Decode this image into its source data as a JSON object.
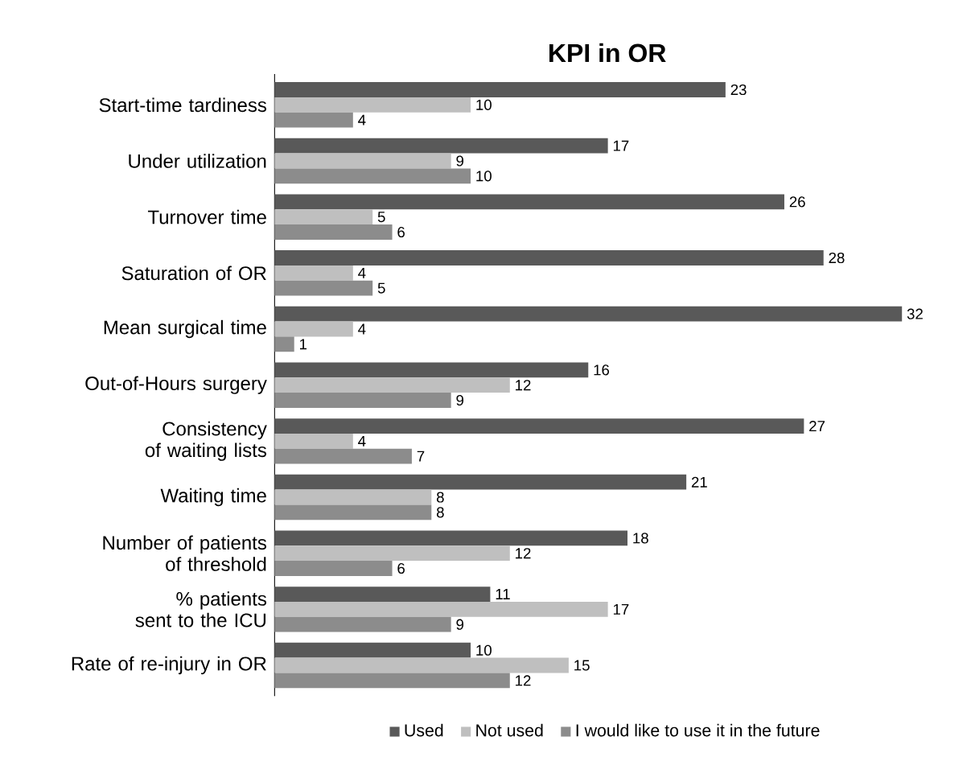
{
  "chart_data": {
    "type": "bar",
    "orientation": "horizontal",
    "title": "KPI in OR",
    "categories": [
      "Start-time tardiness",
      "Under utilization",
      "Turnover time",
      "Saturation of OR",
      "Mean surgical time",
      "Out-of-Hours surgery",
      "Consistency of waiting lists",
      "Waiting time",
      "Number of patients of threshold",
      "% patients sent to the ICU",
      "Rate of re-injury in OR"
    ],
    "series": [
      {
        "name": "Used",
        "color": "#595959",
        "values": [
          23,
          17,
          26,
          28,
          32,
          16,
          27,
          21,
          18,
          11,
          10
        ]
      },
      {
        "name": "Not used",
        "color": "#bfbfbf",
        "values": [
          10,
          9,
          5,
          4,
          4,
          12,
          4,
          8,
          12,
          17,
          15
        ]
      },
      {
        "name": "I would like to use it in the future",
        "color": "#8c8c8c",
        "values": [
          4,
          10,
          6,
          5,
          1,
          9,
          7,
          8,
          6,
          9,
          12
        ]
      }
    ],
    "data_labels": true,
    "legend": "bottom"
  }
}
